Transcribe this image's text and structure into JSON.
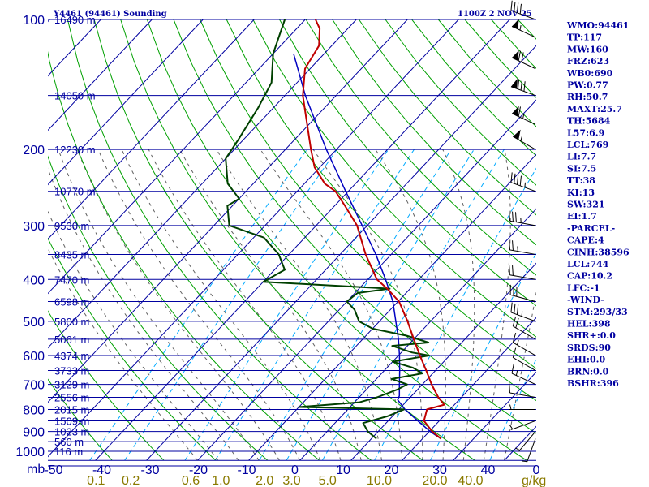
{
  "header": {
    "station": "Y4461 (94461) Sounding",
    "time": "1100Z  2 NOV 25"
  },
  "units": {
    "pressure": "mb",
    "mixing_ratio": "g/kg"
  },
  "colors": {
    "background": "#ffffff",
    "axis": "#0000a0",
    "isobar": "#0000a0",
    "isotherm": "#0000a0",
    "dry_adiabat": "#00a000",
    "moist_adiabat": "#606060",
    "mixing_ratio": "#00aaff",
    "temperature": "#c00000",
    "dewpoint": "#004000",
    "parcel": "#0000c0",
    "mixing_ratio_label": "#8a7a00",
    "wind": "#000000"
  },
  "indices": [
    "WMO:94461",
    "TP:117",
    "MW:160",
    "FRZ:623",
    "WB0:690",
    "PW:0.77",
    "RH:50.7",
    "MAXT:25.7",
    "TH:5684",
    "L57:6.9",
    "LCL:769",
    "LI:7.7",
    "SI:7.5",
    "TT:38",
    "KI:13",
    "SW:321",
    "EI:1.7",
    "-PARCEL-",
    "CAPE:4",
    "CINH:38596",
    "LCL:744",
    "CAP:10.2",
    "LFC:-1",
    "-WIND-",
    "STM:293/33",
    "HEL:398",
    "SHR+:0.0",
    "SRDS:90",
    "EHI:0.0",
    "BRN:0.0",
    "BSHR:396"
  ],
  "chart_data": {
    "type": "skew-t",
    "xlabel": "",
    "ylabel": "",
    "pressure_ticks": [
      "100",
      "200",
      "300",
      "400",
      "500",
      "600",
      "700",
      "800",
      "900",
      "1000"
    ],
    "temperature_ticks": [
      "-50",
      "-40",
      "-30",
      "-20",
      "-10",
      "0",
      "10",
      "20",
      "30",
      "40",
      "0"
    ],
    "mixing_ratio_ticks": [
      "0.1",
      "0.2",
      "0.6",
      "1.0",
      "2.0",
      "3.0",
      "5.0",
      "10.0",
      "20.0",
      "40.0"
    ],
    "height_levels": [
      {
        "p": 100,
        "label": "16490 m"
      },
      {
        "p": 150,
        "label": "14050 m"
      },
      {
        "p": 200,
        "label": "12230 m"
      },
      {
        "p": 250,
        "label": "10770 m"
      },
      {
        "p": 300,
        "label": "9530 m"
      },
      {
        "p": 350,
        "label": "8435 m"
      },
      {
        "p": 400,
        "label": "7470 m"
      },
      {
        "p": 450,
        "label": "6598 m"
      },
      {
        "p": 500,
        "label": "5800 m"
      },
      {
        "p": 550,
        "label": "5061 m"
      },
      {
        "p": 600,
        "label": "4374 m"
      },
      {
        "p": 650,
        "label": "3733 m"
      },
      {
        "p": 700,
        "label": "3129 m"
      },
      {
        "p": 750,
        "label": "2556 m"
      },
      {
        "p": 800,
        "label": "2015 m"
      },
      {
        "p": 850,
        "label": "1509 m"
      },
      {
        "p": 900,
        "label": "1023 m"
      },
      {
        "p": 950,
        "label": "560 m"
      },
      {
        "p": 1000,
        "label": "116 m"
      }
    ],
    "temperature_profile": [
      [
        935,
        23.6
      ],
      [
        900,
        20.6
      ],
      [
        850,
        17.0
      ],
      [
        800,
        15.5
      ],
      [
        780,
        18.0
      ],
      [
        750,
        15.5
      ],
      [
        700,
        11.8
      ],
      [
        650,
        8.2
      ],
      [
        600,
        4.2
      ],
      [
        550,
        0.0
      ],
      [
        500,
        -4.5
      ],
      [
        450,
        -9.8
      ],
      [
        420,
        -14.5
      ],
      [
        400,
        -18.2
      ],
      [
        350,
        -25.0
      ],
      [
        300,
        -32.0
      ],
      [
        270,
        -38.0
      ],
      [
        250,
        -42.5
      ],
      [
        240,
        -46.0
      ],
      [
        220,
        -51.0
      ],
      [
        200,
        -55.0
      ],
      [
        170,
        -61.5
      ],
      [
        150,
        -66.5
      ],
      [
        130,
        -71.0
      ],
      [
        115,
        -72.5
      ],
      [
        105,
        -75.5
      ],
      [
        100,
        -78.0
      ]
    ],
    "dewpoint_profile": [
      [
        935,
        11.0
      ],
      [
        900,
        8.0
      ],
      [
        860,
        5.5
      ],
      [
        830,
        9.0
      ],
      [
        800,
        11.0
      ],
      [
        790,
        -10.0
      ],
      [
        770,
        1.0
      ],
      [
        750,
        3.5
      ],
      [
        720,
        6.0
      ],
      [
        700,
        7.0
      ],
      [
        680,
        3.0
      ],
      [
        660,
        8.0
      ],
      [
        640,
        5.0
      ],
      [
        620,
        0.0
      ],
      [
        600,
        6.0
      ],
      [
        590,
        2.0
      ],
      [
        570,
        -3.0
      ],
      [
        560,
        3.5
      ],
      [
        540,
        -2.0
      ],
      [
        520,
        -10.0
      ],
      [
        500,
        -14.0
      ],
      [
        470,
        -17.0
      ],
      [
        450,
        -20.0
      ],
      [
        430,
        -19.5
      ],
      [
        420,
        -14.0
      ],
      [
        405,
        -40.0
      ],
      [
        380,
        -38.0
      ],
      [
        350,
        -42.0
      ],
      [
        320,
        -48.0
      ],
      [
        300,
        -57.0
      ],
      [
        270,
        -61.0
      ],
      [
        260,
        -60.0
      ],
      [
        240,
        -65.0
      ],
      [
        210,
        -70.0
      ],
      [
        190,
        -71.0
      ],
      [
        160,
        -73.0
      ],
      [
        140,
        -75.0
      ],
      [
        120,
        -80.0
      ],
      [
        100,
        -84.0
      ]
    ],
    "parcel_profile": [
      [
        935,
        23.6
      ],
      [
        900,
        20.2
      ],
      [
        850,
        15.8
      ],
      [
        800,
        11.2
      ],
      [
        760,
        8.0
      ],
      [
        744,
        7.6
      ],
      [
        700,
        5.5
      ],
      [
        650,
        3.0
      ],
      [
        600,
        0.2
      ],
      [
        550,
        -3.0
      ],
      [
        500,
        -6.8
      ],
      [
        450,
        -11.0
      ],
      [
        400,
        -16.5
      ],
      [
        350,
        -23.0
      ],
      [
        300,
        -31.0
      ],
      [
        250,
        -40.5
      ],
      [
        200,
        -52.0
      ],
      [
        150,
        -66.0
      ],
      [
        120,
        -76.0
      ]
    ],
    "wind_barbs": [
      {
        "p": 100,
        "dir": 290,
        "spd": 45
      },
      {
        "p": 110,
        "dir": 295,
        "spd": 55
      },
      {
        "p": 130,
        "dir": 295,
        "spd": 70
      },
      {
        "p": 150,
        "dir": 290,
        "spd": 80
      },
      {
        "p": 175,
        "dir": 295,
        "spd": 65
      },
      {
        "p": 200,
        "dir": 300,
        "spd": 55
      },
      {
        "p": 250,
        "dir": 290,
        "spd": 45
      },
      {
        "p": 300,
        "dir": 280,
        "spd": 35
      },
      {
        "p": 350,
        "dir": 280,
        "spd": 25
      },
      {
        "p": 400,
        "dir": 280,
        "spd": 20
      },
      {
        "p": 450,
        "dir": 285,
        "spd": 30
      },
      {
        "p": 500,
        "dir": 290,
        "spd": 35
      },
      {
        "p": 550,
        "dir": 300,
        "spd": 20
      },
      {
        "p": 600,
        "dir": 300,
        "spd": 15
      },
      {
        "p": 650,
        "dir": 300,
        "spd": 10
      },
      {
        "p": 700,
        "dir": 295,
        "spd": 15
      },
      {
        "p": 750,
        "dir": 280,
        "spd": 10
      },
      {
        "p": 800,
        "dir": 270,
        "spd": 5
      },
      {
        "p": 850,
        "dir": 250,
        "spd": 5
      },
      {
        "p": 900,
        "dir": 220,
        "spd": 5
      },
      {
        "p": 935,
        "dir": 200,
        "spd": 5
      }
    ]
  }
}
